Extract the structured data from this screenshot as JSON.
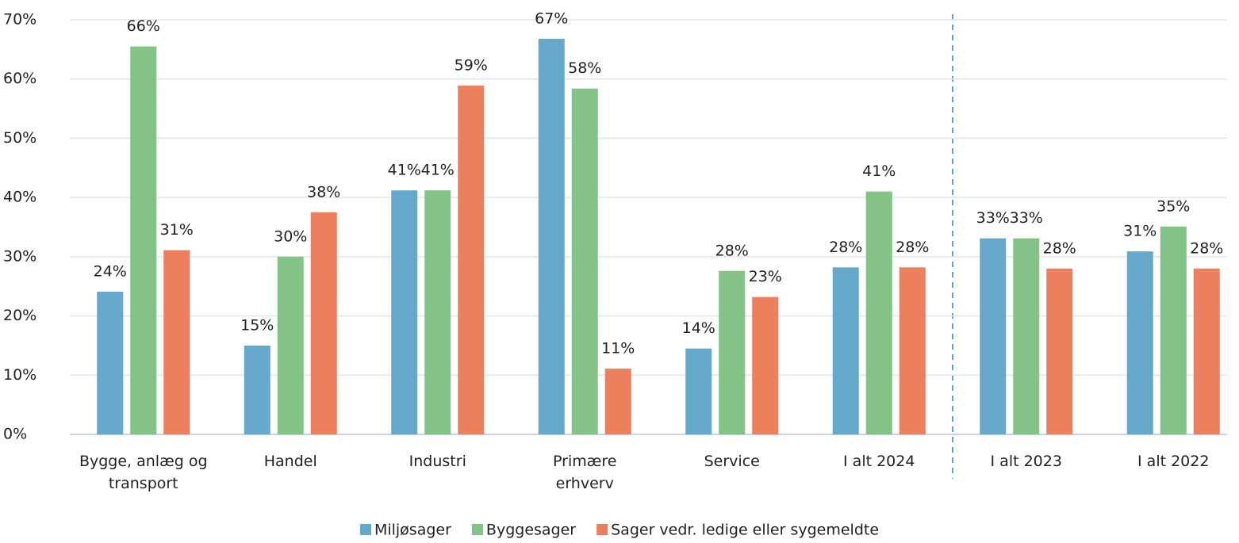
{
  "chart_data": {
    "type": "bar",
    "categories": [
      "Bygge, anlæg og\ntransport",
      "Handel",
      "Industri",
      "Primære\nerhverv",
      "Service",
      "I alt 2024",
      "I alt 2023",
      "I alt 2022"
    ],
    "series": [
      {
        "name": "Miljøsager",
        "color": "#65a8c9",
        "values": [
          24.1,
          15.0,
          41.2,
          66.8,
          14.5,
          28.2,
          33.1,
          30.9
        ],
        "value_labels": [
          "24%",
          "15%",
          "41%",
          "67%",
          "14%",
          "28%",
          "33%",
          "31%"
        ]
      },
      {
        "name": "Byggesager",
        "color": "#84c386",
        "values": [
          65.5,
          30.0,
          41.2,
          58.4,
          27.6,
          41.0,
          33.1,
          35.1
        ],
        "value_labels": [
          "66%",
          "30%",
          "41%",
          "58%",
          "28%",
          "41%",
          "33%",
          "35%"
        ]
      },
      {
        "name": "Sager vedr. ledige eller sygemeldte",
        "color": "#eb7f5e",
        "values": [
          31.1,
          37.5,
          58.9,
          11.1,
          23.2,
          28.2,
          28.0,
          28.0
        ],
        "value_labels": [
          "31%",
          "38%",
          "59%",
          "11%",
          "23%",
          "28%",
          "28%",
          "28%"
        ]
      }
    ],
    "ylim": [
      0,
      70
    ],
    "yticks": [
      {
        "value": 0,
        "label": "0%"
      },
      {
        "value": 10,
        "label": "10%"
      },
      {
        "value": 20,
        "label": "20%"
      },
      {
        "value": 30,
        "label": "30%"
      },
      {
        "value": 40,
        "label": "40%"
      },
      {
        "value": 50,
        "label": "50%"
      },
      {
        "value": 60,
        "label": "60%"
      },
      {
        "value": 70,
        "label": "70%"
      }
    ],
    "grid": true,
    "legend": "bottom"
  }
}
